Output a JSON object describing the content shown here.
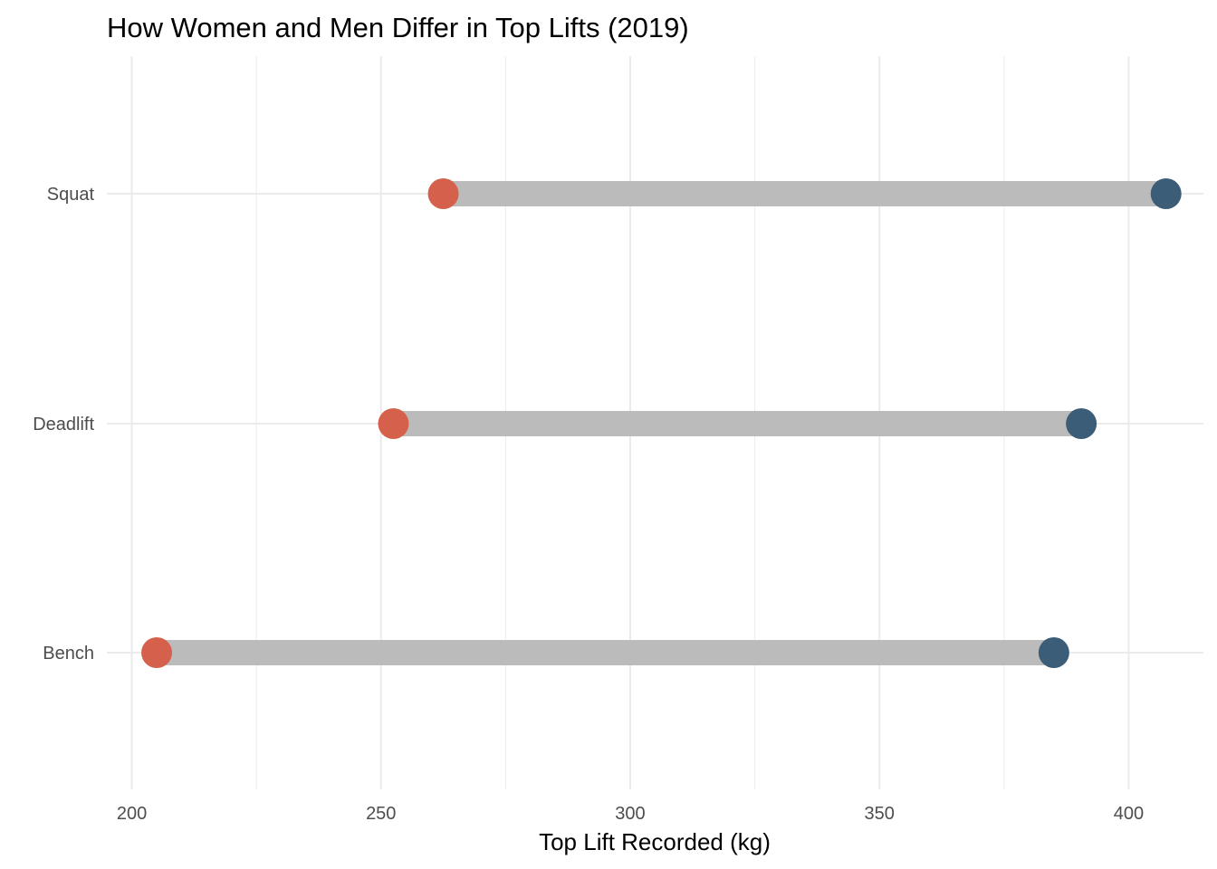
{
  "chart_data": {
    "type": "dumbbell",
    "title": "How Women and Men Differ in Top Lifts (2019)",
    "xlabel": "Top Lift Recorded (kg)",
    "ylabel": "",
    "xlim": [
      195,
      415
    ],
    "x_ticks": [
      200,
      250,
      300,
      350,
      400
    ],
    "grid": true,
    "legend": "none",
    "categories": [
      "Squat",
      "Deadlift",
      "Bench"
    ],
    "series": [
      {
        "values": [
          262.5,
          252.5,
          205.0
        ]
      },
      {
        "values": [
          407.5,
          390.5,
          385.0
        ]
      }
    ],
    "colors": {
      "women": "#d5604c",
      "men": "#3b5d78",
      "segment": "#bbbbbb",
      "grid": "#ebebeb",
      "tick_text": "#4d4d4d"
    }
  }
}
